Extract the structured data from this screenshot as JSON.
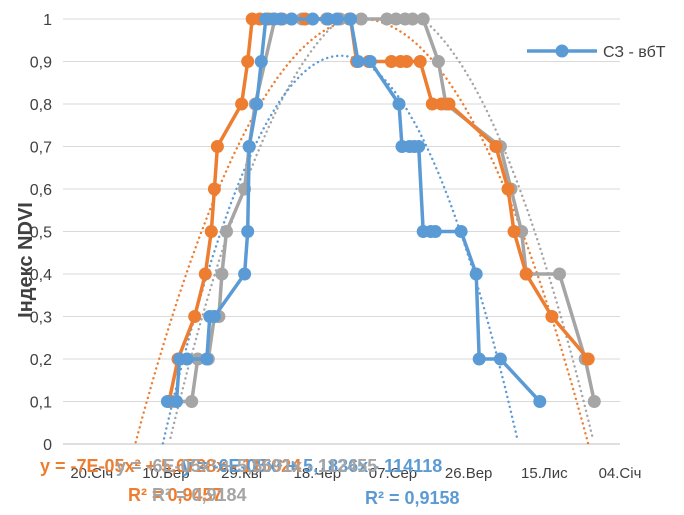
{
  "chart_data": {
    "type": "scatter",
    "ylabel": "Індекс NDVI",
    "ylim": [
      0,
      1
    ],
    "yticks": [
      "0",
      "0,1",
      "0,2",
      "0,3",
      "0,4",
      "0,5",
      "0,6",
      "0,7",
      "0,8",
      "0,9",
      "1"
    ],
    "xlim": [
      "2019-01-01",
      "2020-01-04"
    ],
    "xticks": [
      {
        "date": "2019-01-20",
        "label": "20.Січ"
      },
      {
        "date": "2019-03-10",
        "label": "10.Бер"
      },
      {
        "date": "2019-04-29",
        "label": "29.Кві"
      },
      {
        "date": "2019-06-18",
        "label": "18.Чер"
      },
      {
        "date": "2019-08-07",
        "label": "07.Сер"
      },
      {
        "date": "2019-09-26",
        "label": "26.Вер"
      },
      {
        "date": "2019-11-15",
        "label": "15.Лис"
      },
      {
        "date": "2020-01-04",
        "label": "04.Січ"
      }
    ],
    "grid": "horizontal",
    "legend": {
      "position": "right",
      "entries": [
        "СЗ - вбТ"
      ]
    },
    "series": [
      {
        "name": "СЗ - вбТ",
        "color": "#5B9BD5",
        "trendline": true,
        "points": [
          [
            "2019-03-11",
            0.1
          ],
          [
            "2019-03-17",
            0.1
          ],
          [
            "2019-03-19",
            0.2
          ],
          [
            "2019-03-24",
            0.2
          ],
          [
            "2019-04-06",
            0.2
          ],
          [
            "2019-04-08",
            0.3
          ],
          [
            "2019-04-11",
            0.3
          ],
          [
            "2019-05-01",
            0.4
          ],
          [
            "2019-05-03",
            0.5
          ],
          [
            "2019-05-04",
            0.7
          ],
          [
            "2019-05-09",
            0.8
          ],
          [
            "2019-05-12",
            0.9
          ],
          [
            "2019-05-15",
            1.0
          ],
          [
            "2019-05-20",
            1.0
          ],
          [
            "2019-05-25",
            1.0
          ],
          [
            "2019-06-01",
            1.0
          ],
          [
            "2019-06-15",
            1.0
          ],
          [
            "2019-06-25",
            1.0
          ],
          [
            "2019-07-01",
            1.0
          ],
          [
            "2019-07-10",
            1.0
          ],
          [
            "2019-07-15",
            0.9
          ],
          [
            "2019-07-23",
            0.9
          ],
          [
            "2019-08-11",
            0.8
          ],
          [
            "2019-08-13",
            0.7
          ],
          [
            "2019-08-18",
            0.7
          ],
          [
            "2019-08-21",
            0.7
          ],
          [
            "2019-08-24",
            0.7
          ],
          [
            "2019-08-27",
            0.5
          ],
          [
            "2019-09-01",
            0.5
          ],
          [
            "2019-09-04",
            0.5
          ],
          [
            "2019-09-21",
            0.5
          ],
          [
            "2019-10-01",
            0.4
          ],
          [
            "2019-10-03",
            0.2
          ],
          [
            "2019-10-17",
            0.2
          ],
          [
            "2019-11-12",
            0.1
          ]
        ]
      },
      {
        "color": "#ED7D31",
        "trendline": true,
        "points": [
          [
            "2019-03-12",
            0.1
          ],
          [
            "2019-03-18",
            0.2
          ],
          [
            "2019-03-29",
            0.3
          ],
          [
            "2019-04-05",
            0.4
          ],
          [
            "2019-04-09",
            0.5
          ],
          [
            "2019-04-11",
            0.6
          ],
          [
            "2019-04-13",
            0.7
          ],
          [
            "2019-04-29",
            0.8
          ],
          [
            "2019-05-03",
            0.9
          ],
          [
            "2019-05-06",
            1.0
          ],
          [
            "2019-05-11",
            1.0
          ],
          [
            "2019-05-17",
            1.0
          ],
          [
            "2019-05-25",
            1.0
          ],
          [
            "2019-06-10",
            1.0
          ],
          [
            "2019-06-25",
            1.0
          ],
          [
            "2019-07-10",
            1.0
          ],
          [
            "2019-07-14",
            0.9
          ],
          [
            "2019-07-22",
            0.9
          ],
          [
            "2019-08-06",
            0.9
          ],
          [
            "2019-08-12",
            0.9
          ],
          [
            "2019-08-16",
            0.9
          ],
          [
            "2019-08-25",
            0.9
          ],
          [
            "2019-09-02",
            0.8
          ],
          [
            "2019-09-08",
            0.8
          ],
          [
            "2019-09-13",
            0.8
          ],
          [
            "2019-10-14",
            0.7
          ],
          [
            "2019-10-22",
            0.6
          ],
          [
            "2019-10-26",
            0.5
          ],
          [
            "2019-11-03",
            0.4
          ],
          [
            "2019-11-20",
            0.3
          ],
          [
            "2019-12-14",
            0.2
          ]
        ]
      },
      {
        "color": "#A5A5A5",
        "trendline": true,
        "points": [
          [
            "2019-03-14",
            0.1
          ],
          [
            "2019-03-27",
            0.1
          ],
          [
            "2019-03-31",
            0.2
          ],
          [
            "2019-04-07",
            0.2
          ],
          [
            "2019-04-11",
            0.3
          ],
          [
            "2019-04-14",
            0.3
          ],
          [
            "2019-04-16",
            0.4
          ],
          [
            "2019-04-19",
            0.5
          ],
          [
            "2019-05-01",
            0.6
          ],
          [
            "2019-05-04",
            0.7
          ],
          [
            "2019-05-08",
            0.8
          ],
          [
            "2019-05-21",
            1.0
          ],
          [
            "2019-05-26",
            1.0
          ],
          [
            "2019-06-01",
            1.0
          ],
          [
            "2019-06-08",
            1.0
          ],
          [
            "2019-06-24",
            1.0
          ],
          [
            "2019-07-03",
            1.0
          ],
          [
            "2019-07-09",
            1.0
          ],
          [
            "2019-07-17",
            1.0
          ],
          [
            "2019-08-03",
            1.0
          ],
          [
            "2019-08-09",
            1.0
          ],
          [
            "2019-08-15",
            1.0
          ],
          [
            "2019-08-20",
            1.0
          ],
          [
            "2019-08-27",
            1.0
          ],
          [
            "2019-09-06",
            0.9
          ],
          [
            "2019-09-11",
            0.8
          ],
          [
            "2019-10-17",
            0.7
          ],
          [
            "2019-10-24",
            0.6
          ],
          [
            "2019-10-31",
            0.5
          ],
          [
            "2019-11-03",
            0.4
          ],
          [
            "2019-11-25",
            0.4
          ],
          [
            "2019-12-12",
            0.2
          ],
          [
            "2019-12-18",
            0.1
          ]
        ]
      }
    ],
    "annotations": [
      {
        "text": "y = -7E-05x² + 5,6728x - 115024",
        "color": "#ED7D31"
      },
      {
        "text": "y = -6E-05x² + 5,1836x - 114118",
        "color": "#5B9BD5"
      },
      {
        "text": "y = -6E-05x² + 5,5691x - 112455",
        "color": "#A5A5A5"
      },
      {
        "text": "R² = 0,9457",
        "color": "#ED7D31"
      },
      {
        "text": "R² = 0,9184",
        "color": "#A5A5A5"
      },
      {
        "text": "R² = 0,9158",
        "color": "#5B9BD5"
      }
    ]
  }
}
